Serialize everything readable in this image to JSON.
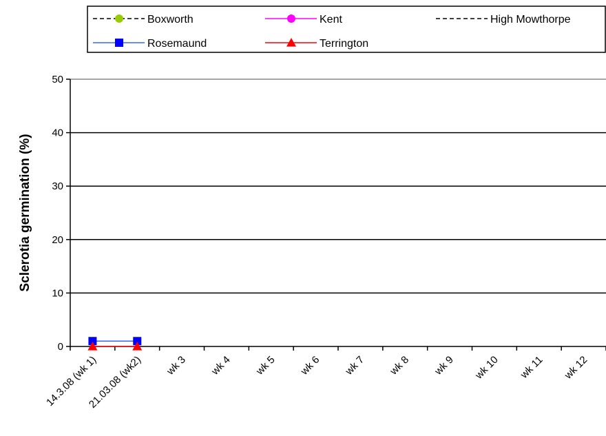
{
  "chart_data": {
    "type": "line",
    "title": "",
    "xlabel": "",
    "ylabel": "Sclerotia germination (%)",
    "ylim": [
      0,
      50
    ],
    "yticks": [
      0,
      10,
      20,
      30,
      40,
      50
    ],
    "grid": "horizontal",
    "legend_position": "top",
    "categories": [
      "14.3.08 (wk 1)",
      "21.03.08 (wk2)",
      "wk 3",
      "wk 4",
      "wk 5",
      "wk 6",
      "wk 7",
      "wk 8",
      "wk 9",
      "wk 10",
      "wk 11",
      "wk 12"
    ],
    "series": [
      {
        "name": "Boxworth",
        "values": [
          null,
          null,
          null,
          null,
          null,
          null,
          null,
          null,
          null,
          null,
          null,
          null
        ],
        "color": "#99CC00",
        "line_color": "#000000",
        "dash": true,
        "marker": "circle"
      },
      {
        "name": "Kent",
        "values": [
          null,
          null,
          null,
          null,
          null,
          null,
          null,
          null,
          null,
          null,
          null,
          null
        ],
        "color": "#FF00FF",
        "line_color": "#FF00FF",
        "dash": false,
        "marker": "circle"
      },
      {
        "name": "High Mowthorpe",
        "values": [
          null,
          null,
          null,
          null,
          null,
          null,
          null,
          null,
          null,
          null,
          null,
          null
        ],
        "color": "#000000",
        "line_color": "#000000",
        "dash": true,
        "marker": "none"
      },
      {
        "name": "Rosemaund",
        "values": [
          1,
          1,
          null,
          null,
          null,
          null,
          null,
          null,
          null,
          null,
          null,
          null
        ],
        "color": "#0000FF",
        "line_color": "#3366FF",
        "dash": false,
        "marker": "square"
      },
      {
        "name": "Terrington",
        "values": [
          0,
          0,
          null,
          null,
          null,
          null,
          null,
          null,
          null,
          null,
          null,
          null
        ],
        "color": "#FF0000",
        "line_color": "#FF0000",
        "dash": false,
        "marker": "triangle"
      }
    ]
  }
}
